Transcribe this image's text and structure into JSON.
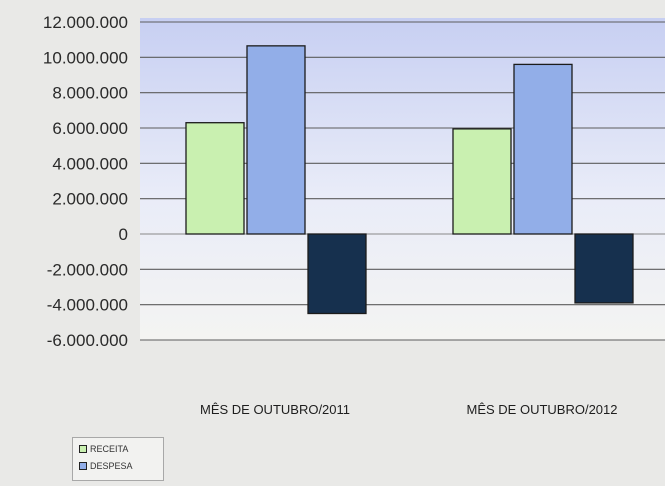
{
  "chart_data": {
    "type": "bar",
    "title": "",
    "xlabel": "",
    "ylabel": "",
    "categories": [
      "MÊS DE OUTUBRO/2011",
      "MÊS DE OUTUBRO/2012"
    ],
    "series": [
      {
        "name": "RECEITA",
        "values": [
          6300000,
          5950000
        ],
        "color": "#c9f0b0"
      },
      {
        "name": "DESPESA",
        "values": [
          10650000,
          9600000
        ],
        "color": "#92aee8"
      },
      {
        "name": "",
        "values": [
          -4500000,
          -3900000
        ],
        "color": "#16304e"
      }
    ],
    "ylim": [
      -6000000,
      12000000
    ],
    "yticks": [
      12000000,
      10000000,
      8000000,
      6000000,
      4000000,
      2000000,
      0,
      -2000000,
      -4000000,
      -6000000
    ],
    "ytick_labels": [
      "12.000.000",
      "10.000.000",
      "8.000.000",
      "6.000.000",
      "4.000.000",
      "2.000.000",
      "0",
      "-2.000.000",
      "-4.000.000",
      "-6.000.000"
    ],
    "grid": true,
    "legend_position": "bottom-left",
    "plot_background": "#cfd6f2"
  }
}
